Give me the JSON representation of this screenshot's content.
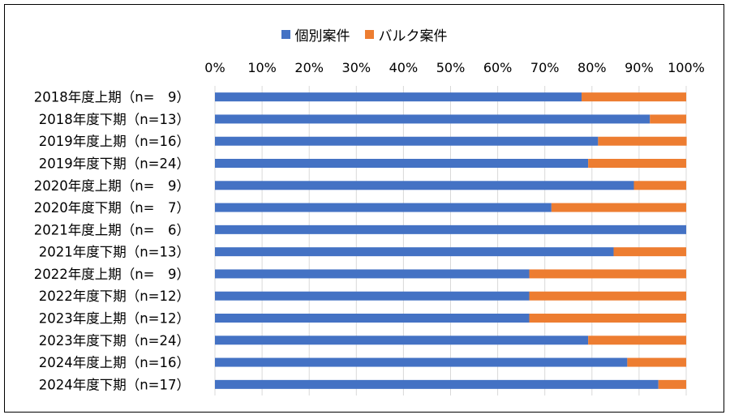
{
  "chart_data": {
    "type": "bar",
    "orientation": "horizontal",
    "stacked": "percent",
    "categories": [
      "2018年度上期（n=　9）",
      "2018年度下期（n=13）",
      "2019年度上期（n=16）",
      "2019年度下期（n=24）",
      "2020年度上期（n=　9）",
      "2020年度下期（n=　7）",
      "2021年度上期（n=　6）",
      "2021年度下期（n=13）",
      "2022年度上期（n=　9）",
      "2022年度下期（n=12）",
      "2023年度上期（n=12）",
      "2023年度下期（n=24）",
      "2024年度上期（n=16）",
      "2024年度下期（n=17）"
    ],
    "series": [
      {
        "name": "個別案件",
        "color": "#4472C4",
        "values": [
          77.8,
          92.3,
          81.3,
          79.2,
          88.9,
          71.4,
          100.0,
          84.6,
          66.7,
          66.7,
          66.7,
          79.2,
          87.5,
          94.1
        ]
      },
      {
        "name": "バルク案件",
        "color": "#ED7D31",
        "values": [
          22.2,
          7.7,
          18.8,
          20.8,
          11.1,
          28.6,
          0.0,
          15.4,
          33.3,
          33.3,
          33.3,
          20.8,
          12.5,
          5.9
        ]
      }
    ],
    "xlim": [
      0,
      100
    ],
    "x_ticks": [
      "0%",
      "10%",
      "20%",
      "30%",
      "40%",
      "50%",
      "60%",
      "70%",
      "80%",
      "90%",
      "100%"
    ],
    "x_axis_position": "top",
    "gridlines": true,
    "legend_position": "top"
  }
}
